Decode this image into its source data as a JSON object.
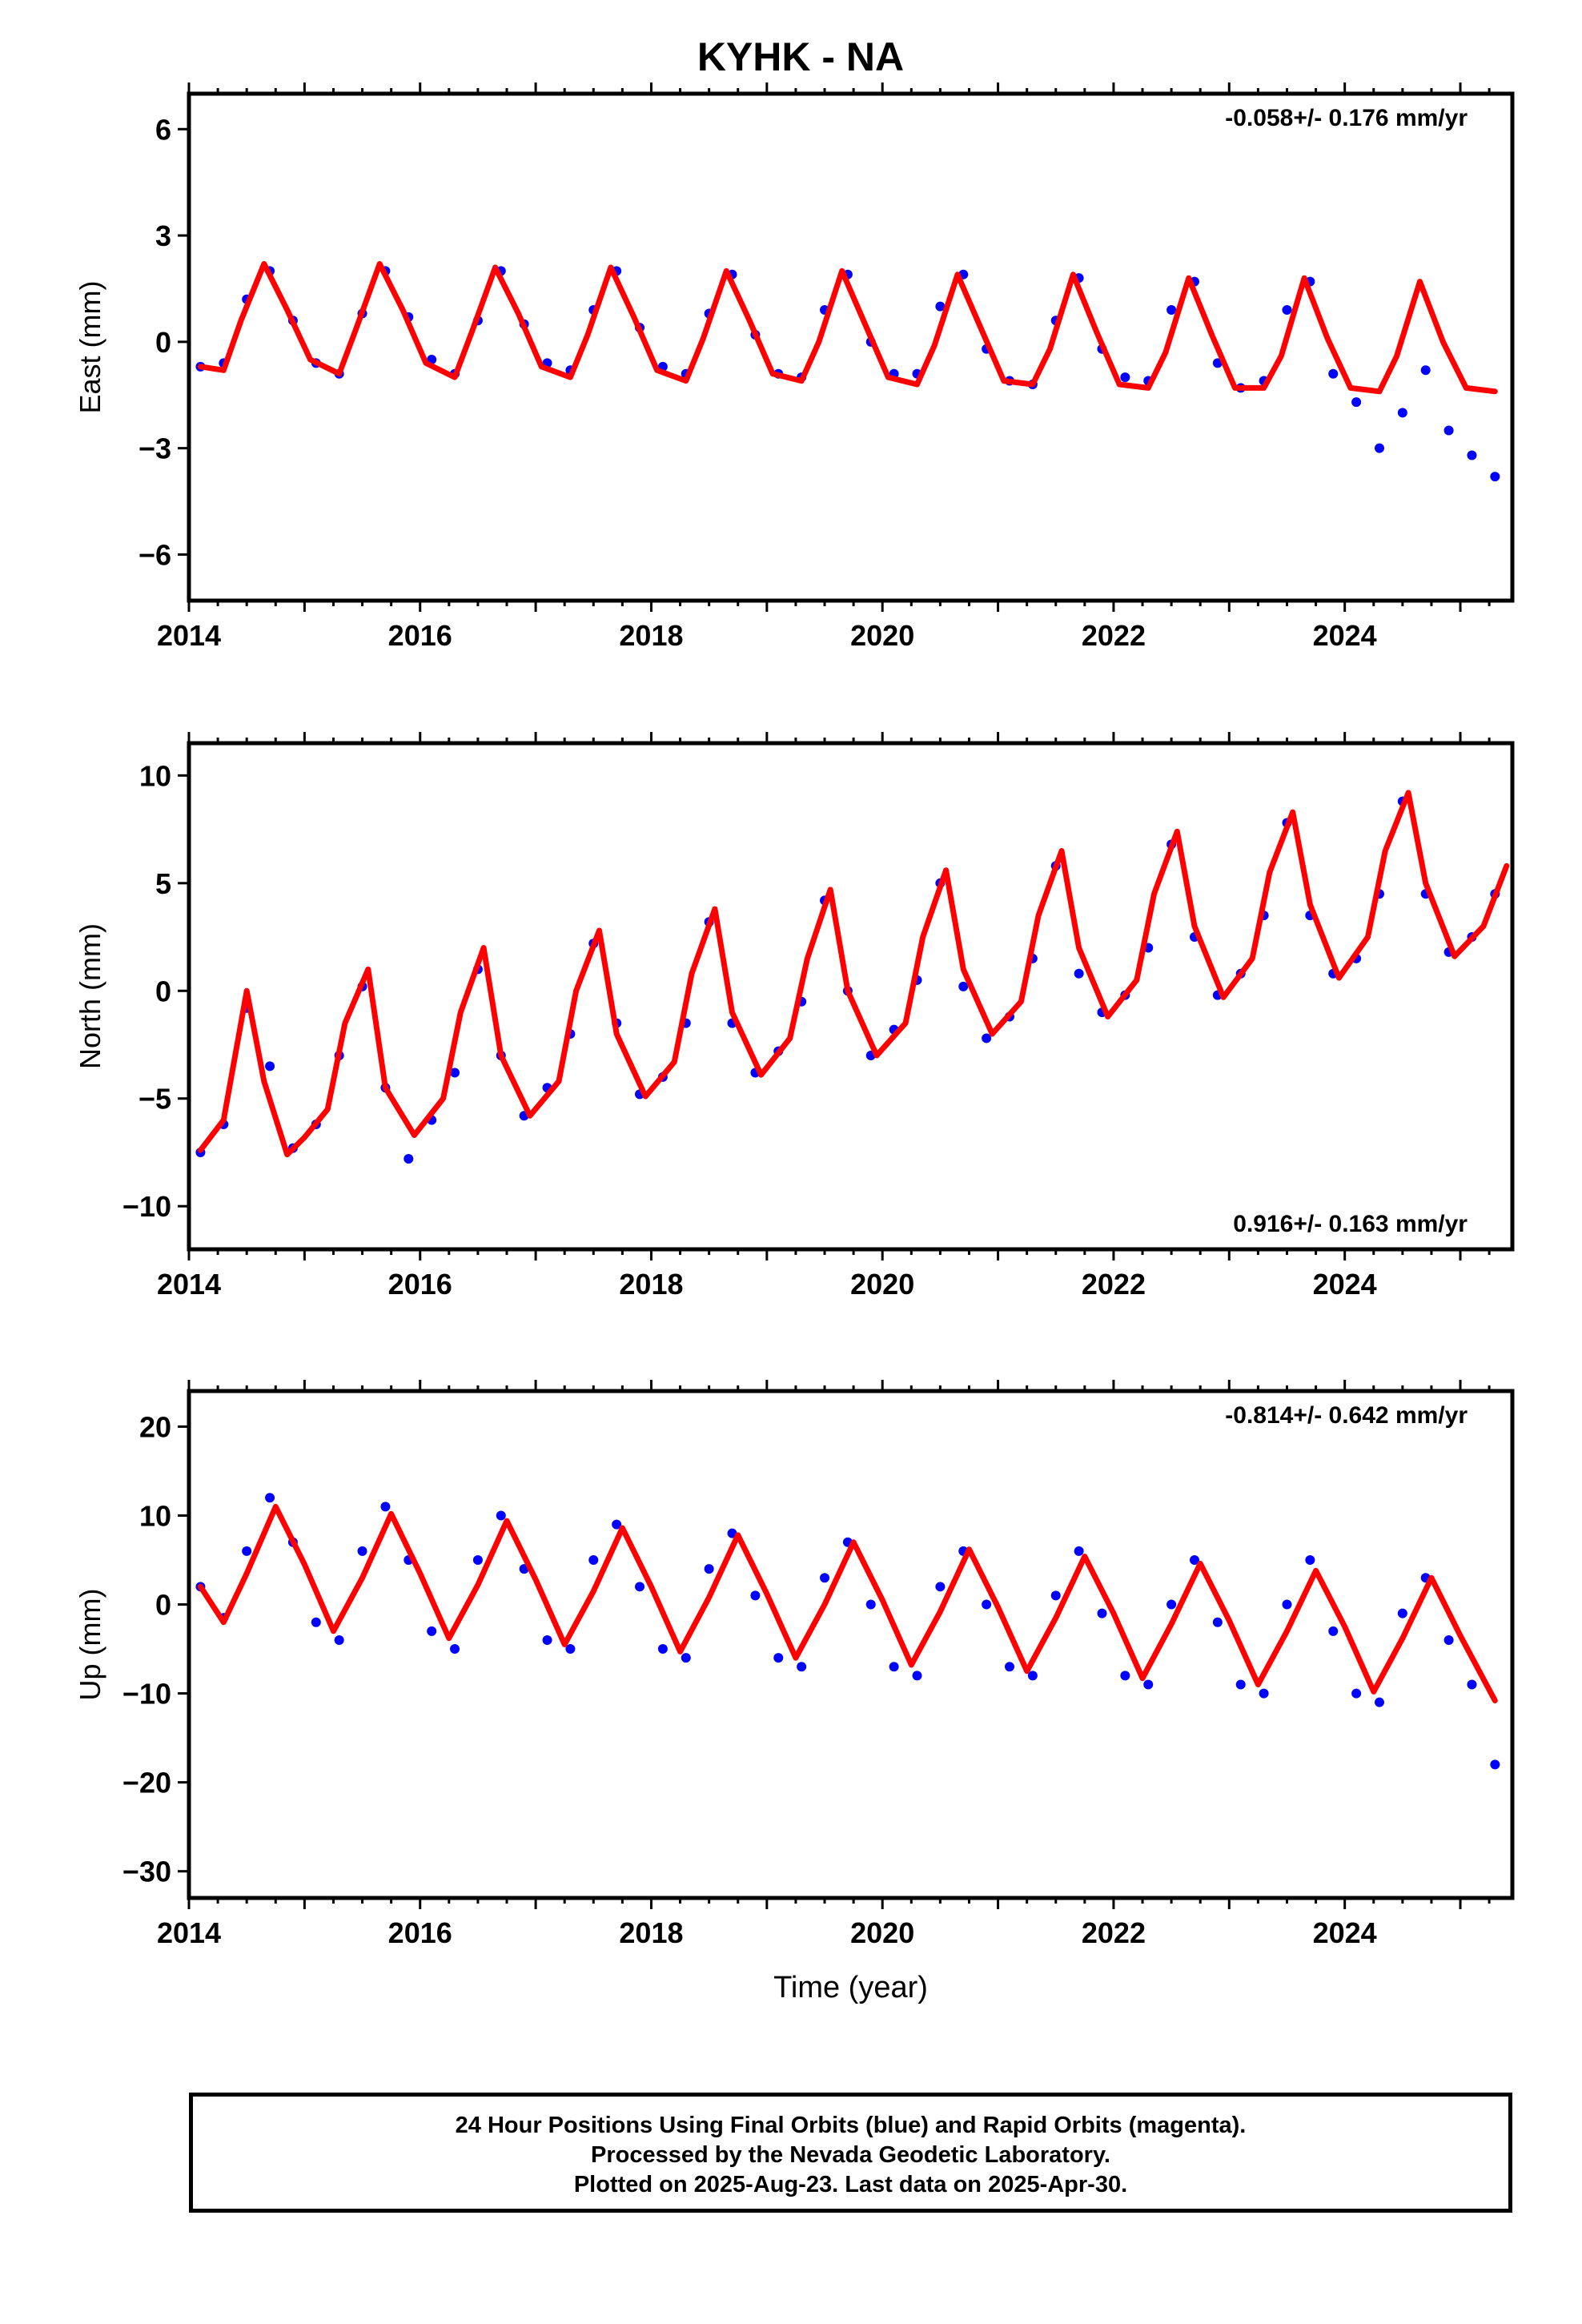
{
  "title": "KYHK - NA",
  "chart_data": [
    {
      "type": "scatter",
      "panel": "east",
      "ylabel": "East (mm)",
      "xlim": [
        2014.0,
        2025.45
      ],
      "ylim": [
        -7.3,
        7.0
      ],
      "yticks": [
        -6,
        -3,
        0,
        3,
        6
      ],
      "ytick_labels": [
        "−6",
        "−3",
        "0",
        "3",
        "6"
      ],
      "xticks": [
        2014,
        2016,
        2018,
        2020,
        2022,
        2024
      ],
      "xtick_labels": [
        "2014",
        "2016",
        "2018",
        "2020",
        "2022",
        "2024"
      ],
      "rate_label": "-0.058+/- 0.176 mm/yr",
      "rate_label_position": "top-right",
      "series": [
        {
          "color": "#0000ff",
          "style": "points",
          "x": [
            2014.1,
            2014.3,
            2014.5,
            2014.7,
            2014.9,
            2015.1,
            2015.3,
            2015.5,
            2015.7,
            2015.9,
            2016.1,
            2016.3,
            2016.5,
            2016.7,
            2016.9,
            2017.1,
            2017.3,
            2017.5,
            2017.7,
            2017.9,
            2018.1,
            2018.3,
            2018.5,
            2018.7,
            2018.9,
            2019.1,
            2019.3,
            2019.5,
            2019.7,
            2019.9,
            2020.1,
            2020.3,
            2020.5,
            2020.7,
            2020.9,
            2021.1,
            2021.3,
            2021.5,
            2021.7,
            2021.9,
            2022.1,
            2022.3,
            2022.5,
            2022.7,
            2022.9,
            2023.1,
            2023.3,
            2023.5,
            2023.7,
            2023.9,
            2024.1,
            2024.3,
            2024.5,
            2024.7,
            2024.9,
            2025.1,
            2025.3
          ],
          "y": [
            -0.7,
            -0.6,
            1.2,
            2.0,
            0.6,
            -0.6,
            -0.9,
            0.8,
            2.0,
            0.7,
            -0.5,
            -0.9,
            0.6,
            2.0,
            0.5,
            -0.6,
            -0.8,
            0.9,
            2.0,
            0.4,
            -0.7,
            -0.9,
            0.8,
            1.9,
            0.2,
            -0.9,
            -1.0,
            0.9,
            1.9,
            0.0,
            -0.9,
            -0.9,
            1.0,
            1.9,
            -0.2,
            -1.1,
            -1.2,
            0.6,
            1.8,
            -0.2,
            -1.0,
            -1.1,
            0.9,
            1.7,
            -0.6,
            -1.3,
            -1.1,
            0.9,
            1.7,
            -0.9,
            -1.7,
            -3.0,
            -2.0,
            -0.8,
            -2.5,
            -3.2,
            -3.8
          ]
        },
        {
          "color": "#ff0000",
          "style": "line",
          "x": [
            2014.1,
            2014.3,
            2014.45,
            2014.65,
            2014.85,
            2015.05,
            2015.3,
            2015.45,
            2015.65,
            2015.85,
            2016.05,
            2016.3,
            2016.45,
            2016.65,
            2016.85,
            2017.05,
            2017.3,
            2017.45,
            2017.65,
            2017.85,
            2018.05,
            2018.3,
            2018.45,
            2018.65,
            2018.85,
            2019.05,
            2019.3,
            2019.45,
            2019.65,
            2019.85,
            2020.05,
            2020.3,
            2020.45,
            2020.65,
            2020.85,
            2021.05,
            2021.3,
            2021.45,
            2021.65,
            2021.85,
            2022.05,
            2022.3,
            2022.45,
            2022.65,
            2022.85,
            2023.05,
            2023.3,
            2023.45,
            2023.65,
            2023.85,
            2024.05,
            2024.3,
            2024.45,
            2024.65,
            2024.85,
            2025.05,
            2025.3
          ],
          "y": [
            -0.7,
            -0.8,
            0.6,
            2.2,
            0.9,
            -0.5,
            -0.9,
            0.4,
            2.2,
            0.9,
            -0.6,
            -1.0,
            0.3,
            2.1,
            0.8,
            -0.7,
            -1.0,
            0.2,
            2.1,
            0.7,
            -0.8,
            -1.1,
            0.1,
            2.0,
            0.6,
            -0.9,
            -1.1,
            0.0,
            2.0,
            0.5,
            -1.0,
            -1.2,
            -0.1,
            1.9,
            0.4,
            -1.1,
            -1.2,
            -0.2,
            1.9,
            0.3,
            -1.2,
            -1.3,
            -0.3,
            1.8,
            0.2,
            -1.3,
            -1.3,
            -0.4,
            1.8,
            0.1,
            -1.3,
            -1.4,
            -0.4,
            1.7,
            0.0,
            -1.3,
            -1.4
          ]
        }
      ]
    },
    {
      "type": "scatter",
      "panel": "north",
      "ylabel": "North (mm)",
      "xlim": [
        2014.0,
        2025.45
      ],
      "ylim": [
        -12.0,
        11.5
      ],
      "yticks": [
        -10,
        -5,
        0,
        5,
        10
      ],
      "ytick_labels": [
        "−10",
        "−5",
        "0",
        "5",
        "10"
      ],
      "xticks": [
        2014,
        2016,
        2018,
        2020,
        2022,
        2024
      ],
      "xtick_labels": [
        "2014",
        "2016",
        "2018",
        "2020",
        "2022",
        "2024"
      ],
      "rate_label": "0.916+/- 0.163 mm/yr",
      "rate_label_position": "bottom-right",
      "series": [
        {
          "color": "#0000ff",
          "style": "points",
          "x": [
            2014.1,
            2014.3,
            2014.5,
            2014.7,
            2014.9,
            2015.1,
            2015.3,
            2015.5,
            2015.7,
            2015.9,
            2016.1,
            2016.3,
            2016.5,
            2016.7,
            2016.9,
            2017.1,
            2017.3,
            2017.5,
            2017.7,
            2017.9,
            2018.1,
            2018.3,
            2018.5,
            2018.7,
            2018.9,
            2019.1,
            2019.3,
            2019.5,
            2019.7,
            2019.9,
            2020.1,
            2020.3,
            2020.5,
            2020.7,
            2020.9,
            2021.1,
            2021.3,
            2021.5,
            2021.7,
            2021.9,
            2022.1,
            2022.3,
            2022.5,
            2022.7,
            2022.9,
            2023.1,
            2023.3,
            2023.5,
            2023.7,
            2023.9,
            2024.1,
            2024.3,
            2024.5,
            2024.7,
            2024.9,
            2025.1,
            2025.3
          ],
          "y": [
            -7.5,
            -6.2,
            -0.8,
            -3.5,
            -7.3,
            -6.2,
            -3.0,
            0.2,
            -4.5,
            -7.8,
            -6.0,
            -3.8,
            1.0,
            -3.0,
            -5.8,
            -4.5,
            -2.0,
            2.2,
            -1.5,
            -4.8,
            -4.0,
            -1.5,
            3.2,
            -1.5,
            -3.8,
            -2.8,
            -0.5,
            4.2,
            0.0,
            -3.0,
            -1.8,
            0.5,
            5.0,
            0.2,
            -2.2,
            -1.2,
            1.5,
            5.8,
            0.8,
            -1.0,
            -0.2,
            2.0,
            6.8,
            2.5,
            -0.2,
            0.8,
            3.5,
            7.8,
            3.5,
            0.8,
            1.5,
            4.5,
            8.8,
            4.5,
            1.8,
            2.5,
            4.5
          ]
        },
        {
          "color": "#ff0000",
          "style": "line",
          "x": [
            2014.1,
            2014.3,
            2014.5,
            2014.65,
            2014.85,
            2015.0,
            2015.2,
            2015.35,
            2015.55,
            2015.7,
            2015.95,
            2016.2,
            2016.35,
            2016.55,
            2016.7,
            2016.95,
            2017.2,
            2017.35,
            2017.55,
            2017.7,
            2017.95,
            2018.2,
            2018.35,
            2018.55,
            2018.7,
            2018.95,
            2019.2,
            2019.35,
            2019.55,
            2019.7,
            2019.95,
            2020.2,
            2020.35,
            2020.55,
            2020.7,
            2020.95,
            2021.2,
            2021.35,
            2021.55,
            2021.7,
            2021.95,
            2022.2,
            2022.35,
            2022.55,
            2022.7,
            2022.95,
            2023.2,
            2023.35,
            2023.55,
            2023.7,
            2023.95,
            2024.2,
            2024.35,
            2024.55,
            2024.7,
            2024.95,
            2025.2,
            2025.4
          ],
          "y": [
            -7.4,
            -6.0,
            0.0,
            -4.2,
            -7.6,
            -6.8,
            -5.5,
            -1.5,
            1.0,
            -4.5,
            -6.7,
            -5.0,
            -1.0,
            2.0,
            -3.0,
            -5.8,
            -4.2,
            0.0,
            2.8,
            -2.0,
            -4.9,
            -3.3,
            0.8,
            3.8,
            -1.0,
            -3.9,
            -2.2,
            1.5,
            4.7,
            0.0,
            -3.0,
            -1.5,
            2.5,
            5.6,
            1.0,
            -2.0,
            -0.5,
            3.5,
            6.5,
            2.0,
            -1.2,
            0.5,
            4.5,
            7.4,
            3.0,
            -0.3,
            1.5,
            5.5,
            8.3,
            4.0,
            0.6,
            2.5,
            6.5,
            9.2,
            5.0,
            1.6,
            3.0,
            5.8
          ]
        }
      ]
    },
    {
      "type": "scatter",
      "panel": "up",
      "ylabel": "Up (mm)",
      "xlabel": "Time (year)",
      "xlim": [
        2014.0,
        2025.45
      ],
      "ylim": [
        -33.0,
        24.0
      ],
      "yticks": [
        -30,
        -20,
        -10,
        0,
        10,
        20
      ],
      "ytick_labels": [
        "−30",
        "−20",
        "−10",
        "0",
        "10",
        "20"
      ],
      "xticks": [
        2014,
        2016,
        2018,
        2020,
        2022,
        2024
      ],
      "xtick_labels": [
        "2014",
        "2016",
        "2018",
        "2020",
        "2022",
        "2024"
      ],
      "rate_label": "-0.814+/- 0.642 mm/yr",
      "rate_label_position": "top-right",
      "series": [
        {
          "color": "#0000ff",
          "style": "points",
          "x": [
            2014.1,
            2014.3,
            2014.5,
            2014.7,
            2014.9,
            2015.1,
            2015.3,
            2015.5,
            2015.7,
            2015.9,
            2016.1,
            2016.3,
            2016.5,
            2016.7,
            2016.9,
            2017.1,
            2017.3,
            2017.5,
            2017.7,
            2017.9,
            2018.1,
            2018.3,
            2018.5,
            2018.7,
            2018.9,
            2019.1,
            2019.3,
            2019.5,
            2019.7,
            2019.9,
            2020.1,
            2020.3,
            2020.5,
            2020.7,
            2020.9,
            2021.1,
            2021.3,
            2021.5,
            2021.7,
            2021.9,
            2022.1,
            2022.3,
            2022.5,
            2022.7,
            2022.9,
            2023.1,
            2023.3,
            2023.5,
            2023.7,
            2023.9,
            2024.1,
            2024.3,
            2024.5,
            2024.7,
            2024.9,
            2025.1,
            2025.3
          ],
          "y": [
            2.0,
            -1.5,
            6.0,
            12.0,
            7.0,
            -2.0,
            -4.0,
            6.0,
            11.0,
            5.0,
            -3.0,
            -5.0,
            5.0,
            10.0,
            4.0,
            -4.0,
            -5.0,
            5.0,
            9.0,
            2.0,
            -5.0,
            -6.0,
            4.0,
            8.0,
            1.0,
            -6.0,
            -7.0,
            3.0,
            7.0,
            0.0,
            -7.0,
            -8.0,
            2.0,
            6.0,
            0.0,
            -7.0,
            -8.0,
            1.0,
            6.0,
            -1.0,
            -8.0,
            -9.0,
            0.0,
            5.0,
            -2.0,
            -9.0,
            -10.0,
            0.0,
            5.0,
            -3.0,
            -10.0,
            -11.0,
            -1.0,
            3.0,
            -4.0,
            -9.0,
            -18.0
          ]
        },
        {
          "color": "#ff0000",
          "style": "line",
          "x": [
            2014.1,
            2014.3,
            2014.5,
            2014.75,
            2015.0,
            2015.25,
            2015.5,
            2015.75,
            2016.0,
            2016.25,
            2016.5,
            2016.75,
            2017.0,
            2017.25,
            2017.5,
            2017.75,
            2018.0,
            2018.25,
            2018.5,
            2018.75,
            2019.0,
            2019.25,
            2019.5,
            2019.75,
            2020.0,
            2020.25,
            2020.5,
            2020.75,
            2021.0,
            2021.25,
            2021.5,
            2021.75,
            2022.0,
            2022.25,
            2022.5,
            2022.75,
            2023.0,
            2023.25,
            2023.5,
            2023.75,
            2024.0,
            2024.25,
            2024.5,
            2024.75,
            2025.0,
            2025.3
          ],
          "y": [
            2.0,
            -2.0,
            3.5,
            11.0,
            4.5,
            -3.0,
            3.0,
            10.2,
            3.5,
            -3.8,
            2.2,
            9.4,
            2.8,
            -4.5,
            1.5,
            8.6,
            2.0,
            -5.3,
            0.8,
            7.8,
            1.2,
            -6.0,
            0.0,
            7.0,
            0.5,
            -6.8,
            -0.8,
            6.2,
            -0.3,
            -7.5,
            -1.5,
            5.4,
            -1.0,
            -8.3,
            -2.2,
            4.6,
            -1.8,
            -9.0,
            -3.0,
            3.8,
            -2.5,
            -9.8,
            -3.8,
            3.0,
            -3.5,
            -10.8
          ]
        }
      ]
    }
  ],
  "footer": {
    "line1": "24 Hour Positions Using Final Orbits (blue) and Rapid Orbits (magenta).",
    "line2": "Processed by the Nevada Geodetic Laboratory.",
    "line3": "Plotted on 2025-Aug-23. Last data on 2025-Apr-30."
  }
}
